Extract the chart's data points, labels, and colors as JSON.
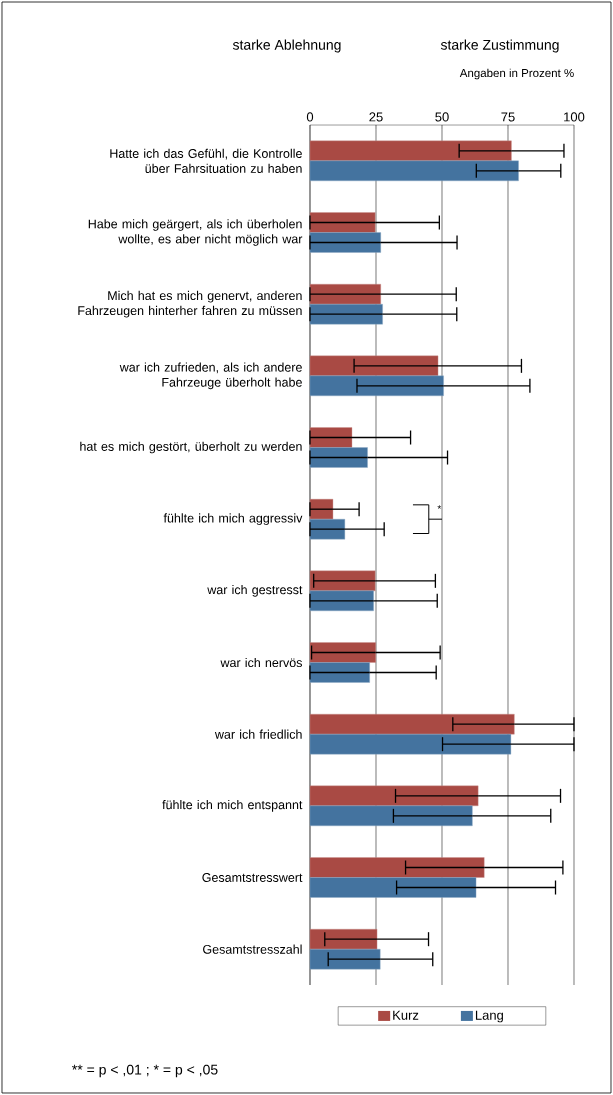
{
  "chart_data": {
    "type": "bar",
    "orientation": "horizontal",
    "categories": [
      "Hatte ich das Gefühl, die Kontrolle über Fahrsituation zu haben",
      "Habe mich geärgert, als ich überholen wollte, es aber nicht möglich war",
      "Mich hat es mich genervt, anderen Fahrzeugen hinterher fahren zu müssen",
      "war ich zufrieden, als ich andere Fahrzeuge überholt habe",
      "hat es mich gestört, überholt zu werden",
      "fühlte ich mich aggressiv",
      "war ich gestresst",
      "war ich nervös",
      "war ich friedlich",
      "fühlte ich mich entspannt",
      "Gesamtstresswert",
      "Gesamtstresszahl"
    ],
    "series": [
      {
        "name": "Kurz",
        "color": "#a94a44",
        "values": [
          76.3,
          24.7,
          26.8,
          48.5,
          15.9,
          8.7,
          24.7,
          24.9,
          77.4,
          63.7,
          66,
          25.4
        ],
        "errors": [
          [
            56.5,
            96.2
          ],
          [
            0,
            49
          ],
          [
            0,
            55.4
          ],
          [
            16.7,
            80.1
          ],
          [
            0,
            38.1
          ],
          [
            0,
            18.6
          ],
          [
            1.4,
            47.5
          ],
          [
            0.6,
            49.3
          ],
          [
            54.1,
            100
          ],
          [
            32.4,
            94.9
          ],
          [
            36.2,
            95.8
          ],
          [
            5.6,
            44.9
          ]
        ]
      },
      {
        "name": "Lang",
        "color": "#44739f",
        "values": [
          79,
          26.8,
          27.5,
          50.6,
          21.8,
          13.2,
          24.1,
          22.6,
          76.1,
          61.5,
          62.9,
          26.6
        ],
        "errors": [
          [
            63,
            95
          ],
          [
            0,
            55.7
          ],
          [
            0,
            55.6
          ],
          [
            17.8,
            83.3
          ],
          [
            0,
            52.1
          ],
          [
            0,
            28.1
          ],
          [
            0,
            48.2
          ],
          [
            0,
            47.8
          ],
          [
            50.2,
            100
          ],
          [
            31.6,
            91.2
          ],
          [
            32.8,
            93
          ],
          [
            6.9,
            46.5
          ]
        ]
      }
    ],
    "xlim": [
      0,
      100
    ],
    "xticks": [
      0,
      25,
      50,
      75,
      100
    ],
    "grid": "x",
    "legend": "bottom",
    "annotations": [
      "starke Ablehnung",
      "starke Zustimmung",
      "Angaben in Prozent %",
      "*",
      "** = p < ,01 ; * = p < ,05"
    ]
  }
}
